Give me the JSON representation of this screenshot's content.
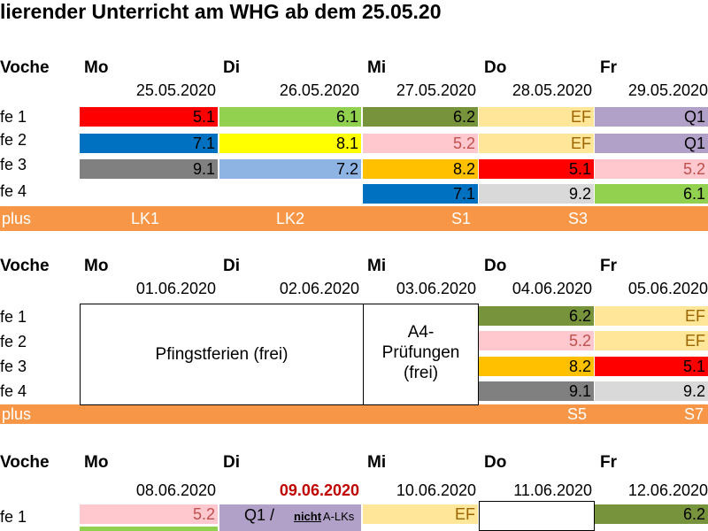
{
  "title": "lierender Unterricht am WHG ab dem 25.05.20",
  "colors": {
    "red": "#ff0000",
    "green": "#92d050",
    "olive": "#77933c",
    "lightyellow": "#ffe699",
    "lavender": "#b1a0c7",
    "blue": "#0070c0",
    "yellow": "#ffff00",
    "pink": "#ffc7ce",
    "gray": "#808080",
    "lightblue": "#8db4e2",
    "orange": "#ffc000",
    "lightgray": "#d9d9d9",
    "plus": "#f79646",
    "efText": "#9c6500",
    "pinkText": "#c0504d"
  },
  "weeks": [
    {
      "label": "Voche",
      "days": [
        "Mo",
        "Di",
        "Mi",
        "Do",
        "Fr"
      ],
      "dates": [
        "25.05.2020",
        "26.05.2020",
        "27.05.2020",
        "28.05.2020",
        "29.05.2020"
      ],
      "rows": [
        {
          "label": "fe 1",
          "cells": [
            "5.1",
            "6.1",
            "6.2",
            "EF",
            "Q1"
          ]
        },
        {
          "label": "fe 2",
          "cells": [
            "7.1",
            "8.1",
            "5.2",
            "EF",
            "Q1"
          ]
        },
        {
          "label": "fe 3",
          "cells": [
            "9.1",
            "7.2",
            "8.2",
            "5.1",
            "5.2"
          ]
        },
        {
          "label": "fe 4",
          "cells": [
            "",
            "",
            "7.1",
            "9.2",
            "6.1"
          ]
        }
      ],
      "plus": {
        "label": "plus",
        "items": [
          "LK1",
          "LK2",
          "S1",
          "S3"
        ]
      }
    },
    {
      "label": "Voche",
      "days": [
        "Mo",
        "Di",
        "Mi",
        "Do",
        "Fr"
      ],
      "dates": [
        "01.06.2020",
        "02.06.2020",
        "03.06.2020",
        "04.06.2020",
        "05.06.2020"
      ],
      "holiday": "Pfingstferien (frei)",
      "exam": "A4-\nPrüfungen\n(frei)",
      "rows": [
        {
          "label": "fe 1",
          "cells": [
            "6.2",
            "EF"
          ]
        },
        {
          "label": "fe 2",
          "cells": [
            "5.2",
            "EF"
          ]
        },
        {
          "label": "fe 3",
          "cells": [
            "8.2",
            "5.1"
          ]
        },
        {
          "label": "fe 4",
          "cells": [
            "9.1",
            "9.2"
          ]
        }
      ],
      "plus": {
        "label": "plus",
        "items": [
          "S5",
          "S7"
        ]
      }
    },
    {
      "label": "Voche",
      "days": [
        "Mo",
        "Di",
        "Mi",
        "Do",
        "Fr"
      ],
      "dates": [
        "08.06.2020",
        "09.06.2020",
        "10.06.2020",
        "11.06.2020",
        "12.06.2020"
      ],
      "rows": [
        {
          "label": "fe 1",
          "cells": [
            "5.2",
            "Q1 /",
            "EF",
            "",
            "6.2"
          ]
        }
      ],
      "note_nicht": "nicht",
      "note_alks": " A-LKs"
    }
  ]
}
